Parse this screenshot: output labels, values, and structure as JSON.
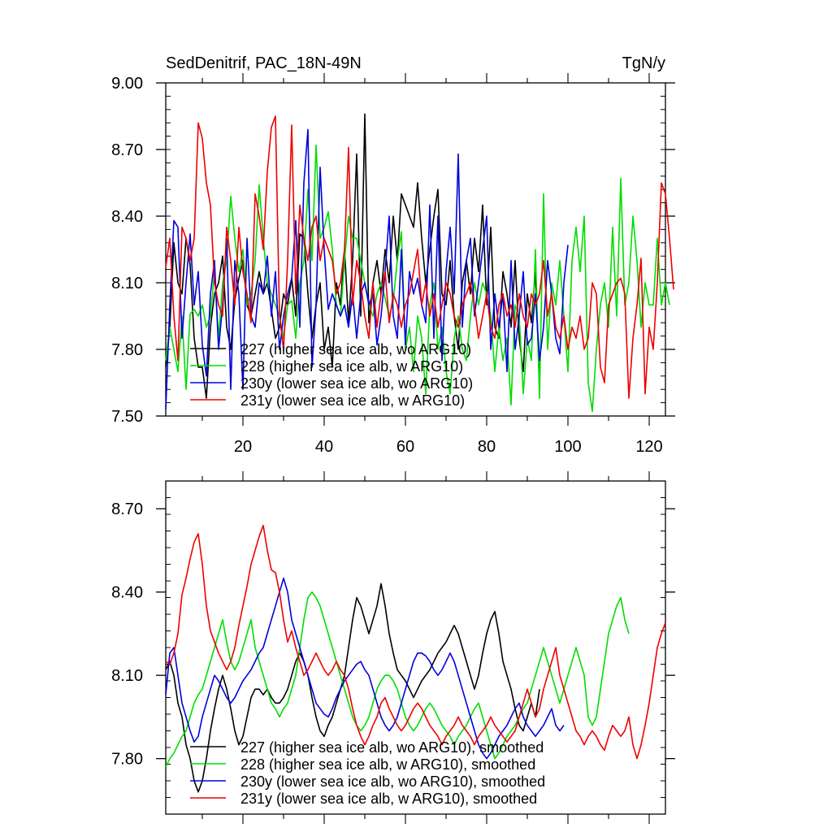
{
  "chart_data": [
    {
      "type": "line",
      "title_left": "SedDenitrif, PAC_18N-49N",
      "title_right": "TgN/y",
      "xlim": [
        1,
        124
      ],
      "ylim": [
        7.5,
        9.0
      ],
      "xticks": [
        20,
        40,
        60,
        80,
        100,
        120
      ],
      "yticks": [
        7.5,
        7.8,
        8.1,
        8.4,
        8.7,
        9.0
      ],
      "ytick_labels": [
        "7.50",
        "7.80",
        "8.10",
        "8.40",
        "8.70",
        "9.00"
      ],
      "legend_position": "bottom-left",
      "series": [
        {
          "name": "227 (higher sea ice alb, wo ARG10)",
          "color": "#000000",
          "start": 1,
          "values": [
            7.72,
            7.9,
            8.28,
            8.1,
            8.05,
            8.3,
            8.18,
            7.85,
            7.72,
            7.72,
            7.58,
            7.9,
            8.05,
            8.1,
            8.22,
            7.9,
            7.8,
            8.02,
            8.12,
            8.2,
            8.0,
            7.95,
            8.05,
            8.15,
            8.05,
            8.1,
            7.98,
            7.85,
            7.9,
            8.05,
            8.0,
            8.12,
            7.95,
            8.32,
            8.3,
            8.05,
            7.85,
            8.0,
            8.1,
            7.8,
            7.9,
            7.72,
            8.1,
            8.0,
            8.25,
            7.92,
            8.2,
            8.68,
            7.95,
            8.86,
            7.92,
            8.1,
            8.2,
            8.05,
            8.25,
            8.1,
            8.4,
            8.2,
            8.5,
            8.45,
            8.4,
            8.35,
            8.55,
            8.3,
            8.1,
            8.25,
            8.4,
            8.52,
            8.05,
            8.0,
            8.2,
            7.95,
            7.8,
            8.1,
            8.2,
            8.05,
            8.3,
            8.15,
            8.45,
            8.0,
            8.35,
            7.9,
            7.85,
            8.15,
            8.05,
            7.9,
            8.2,
            7.85,
            7.7,
            8.05,
            7.92,
            8.15,
            7.64
          ]
        },
        {
          "name": "228 (higher sea ice alb, w ARG10)",
          "color": "#00dd00",
          "start": 1,
          "values": [
            7.75,
            7.9,
            7.8,
            7.7,
            7.95,
            7.62,
            7.96,
            7.98,
            7.95,
            8.0,
            7.9,
            7.95,
            8.15,
            7.85,
            8.1,
            8.2,
            8.49,
            8.3,
            8.15,
            8.25,
            8.0,
            8.05,
            8.2,
            8.54,
            8.3,
            8.1,
            8.05,
            8.0,
            7.95,
            7.85,
            8.0,
            8.02,
            7.85,
            8.1,
            8.2,
            8.52,
            8.2,
            8.72,
            8.3,
            8.35,
            8.42,
            8.25,
            8.0,
            7.95,
            8.2,
            8.4,
            8.3,
            8.3,
            8.2,
            8.1,
            8.0,
            7.95,
            8.05,
            8.1,
            8.03,
            7.95,
            8.02,
            8.2,
            8.33,
            7.8,
            7.9,
            7.7,
            7.95,
            7.85,
            7.6,
            8.0,
            8.1,
            7.8,
            7.9,
            7.7,
            7.6,
            7.85,
            7.95,
            7.8,
            7.75,
            7.95,
            8.1,
            8.0,
            8.1,
            8.05,
            7.95,
            7.7,
            7.9,
            7.75,
            7.85,
            7.55,
            8.0,
            7.95,
            7.6,
            7.85,
            7.75,
            8.25,
            7.58,
            8.5,
            7.8,
            8.1,
            8.0,
            8.2,
            7.95,
            7.7,
            8.2,
            8.35,
            8.15,
            8.4,
            7.65,
            7.52,
            7.8,
            8.0,
            8.1,
            7.9,
            8.35,
            7.95,
            8.57,
            8.0,
            8.1,
            8.4,
            8.2,
            7.9,
            8.1,
            8.0,
            8.0,
            8.3,
            8.0,
            8.1,
            8.0
          ]
        },
        {
          "name": "230y (lower sea ice alb, wo ARG10)",
          "color": "#0000dd",
          "start": 1,
          "values": [
            7.53,
            8.0,
            8.38,
            8.35,
            7.85,
            8.1,
            8.32,
            8.0,
            8.15,
            7.82,
            7.68,
            8.05,
            8.2,
            7.8,
            8.0,
            8.3,
            7.62,
            8.2,
            8.05,
            7.62,
            8.3,
            7.95,
            7.9,
            8.1,
            8.05,
            8.22,
            7.95,
            8.15,
            7.8,
            7.95,
            8.05,
            8.12,
            8.38,
            7.9,
            8.55,
            8.79,
            7.72,
            8.0,
            8.62,
            8.25,
            7.98,
            8.05,
            8.0,
            7.95,
            8.0,
            7.9,
            8.05,
            7.85,
            8.05,
            8.1,
            8.0,
            8.05,
            7.82,
            7.95,
            8.15,
            8.4,
            7.95,
            7.85,
            8.25,
            7.82,
            8.15,
            8.05,
            8.12,
            8.0,
            7.92,
            8.45,
            7.85,
            8.4,
            7.75,
            8.15,
            8.35,
            8.05,
            8.68,
            7.9,
            8.2,
            8.3,
            7.95,
            8.1,
            8.25,
            8.4,
            7.8,
            8.05,
            7.9,
            8.05,
            7.7,
            8.2,
            7.8,
            7.95,
            8.15,
            7.82,
            7.85,
            8.05,
            7.75,
            7.9,
            8.2,
            8.05,
            7.85,
            7.78,
            8.1,
            8.27
          ]
        },
        {
          "name": "231y (lower sea ice alb, w ARG10)",
          "color": "#ee0000",
          "start": 1,
          "values": [
            8.17,
            8.3,
            7.95,
            7.75,
            8.35,
            8.3,
            8.2,
            8.3,
            8.82,
            8.75,
            8.55,
            8.45,
            8.1,
            8.0,
            7.95,
            8.35,
            8.2,
            8.0,
            8.35,
            8.15,
            8.05,
            7.92,
            8.5,
            8.4,
            8.25,
            8.6,
            8.8,
            8.85,
            7.95,
            7.8,
            8.2,
            8.81,
            8.05,
            8.45,
            8.3,
            8.2,
            8.35,
            8.4,
            8.2,
            8.3,
            8.25,
            8.2,
            8.05,
            8.1,
            8.25,
            8.71,
            8.0,
            8.2,
            8.1,
            7.95,
            7.85,
            8.1,
            7.9,
            8.05,
            8.15,
            7.92,
            8.05,
            8.0,
            7.9,
            8.0,
            8.05,
            8.15,
            8.25,
            8.0,
            8.1,
            7.95,
            8.05,
            7.9,
            8.0,
            8.1,
            8.05,
            7.95,
            7.9,
            8.0,
            8.05,
            8.1,
            8.0,
            7.85,
            7.95,
            8.05,
            7.9,
            7.85,
            8.0,
            8.05,
            7.95,
            8.0,
            7.9,
            8.05,
            7.95,
            7.9,
            8.05,
            8.0,
            8.05,
            8.2,
            7.95,
            8.05,
            7.9,
            7.85,
            7.95,
            7.8,
            7.9,
            7.85,
            7.95,
            7.8,
            7.85,
            8.1,
            8.05,
            7.72,
            7.65,
            8.0,
            8.05,
            8.1,
            8.12,
            8.05,
            7.58,
            7.85,
            8.0,
            8.21,
            7.6,
            7.9,
            7.8,
            8.1,
            8.55,
            8.5,
            8.3,
            8.07
          ]
        }
      ],
      "legend": [
        "227 (higher sea ice alb, wo ARG10)",
        "228 (higher sea ice alb, w ARG10)",
        "230y (lower sea ice alb, wo ARG10)",
        "231y (lower sea ice alb, w ARG10)"
      ]
    },
    {
      "type": "line",
      "xlim": [
        1,
        124
      ],
      "ylim": [
        7.6,
        8.8
      ],
      "xticks": [
        20,
        40,
        60,
        80,
        100,
        120
      ],
      "yticks": [
        7.8,
        8.1,
        8.4,
        8.7
      ],
      "ytick_labels": [
        "7.80",
        "8.10",
        "8.40",
        "8.70"
      ],
      "legend_position": "bottom-left",
      "series": [
        {
          "name": "227 (higher sea ice alb, wo ARG10), smoothed",
          "color": "#000000",
          "start": 1,
          "values": [
            8.12,
            8.15,
            8.1,
            8.0,
            7.95,
            7.85,
            7.8,
            7.72,
            7.68,
            7.72,
            7.8,
            7.9,
            7.98,
            8.05,
            8.1,
            8.05,
            7.98,
            7.9,
            7.85,
            7.88,
            7.95,
            8.02,
            8.05,
            8.05,
            8.03,
            8.05,
            8.02,
            8.0,
            8.0,
            8.02,
            8.05,
            8.1,
            8.15,
            8.18,
            8.15,
            8.1,
            8.02,
            7.95,
            7.9,
            7.88,
            7.92,
            7.95,
            8.0,
            8.05,
            8.1,
            8.2,
            8.3,
            8.38,
            8.35,
            8.3,
            8.25,
            8.3,
            8.35,
            8.43,
            8.35,
            8.25,
            8.18,
            8.12,
            8.1,
            8.08,
            8.05,
            8.02,
            8.05,
            8.08,
            8.1,
            8.12,
            8.15,
            8.18,
            8.2,
            8.22,
            8.25,
            8.28,
            8.25,
            8.2,
            8.15,
            8.1,
            8.05,
            8.1,
            8.18,
            8.25,
            8.3,
            8.33,
            8.25,
            8.15,
            8.1,
            8.05,
            7.98,
            7.92,
            7.9,
            7.95,
            8.0,
            7.95,
            8.05
          ]
        },
        {
          "name": "228 (higher sea ice alb, w ARG10), smoothed",
          "color": "#00dd00",
          "start": 1,
          "values": [
            7.77,
            7.8,
            7.82,
            7.85,
            7.88,
            7.9,
            7.95,
            8.0,
            8.03,
            8.05,
            8.1,
            8.15,
            8.2,
            8.25,
            8.3,
            8.22,
            8.15,
            8.12,
            8.15,
            8.2,
            8.25,
            8.3,
            8.2,
            8.15,
            8.1,
            8.05,
            8.0,
            7.98,
            7.95,
            7.98,
            8.0,
            8.05,
            8.1,
            8.2,
            8.3,
            8.38,
            8.4,
            8.38,
            8.35,
            8.3,
            8.25,
            8.2,
            8.15,
            8.1,
            8.05,
            8.0,
            7.95,
            7.92,
            7.9,
            7.92,
            7.95,
            8.0,
            8.05,
            8.08,
            8.1,
            8.1,
            8.08,
            8.05,
            8.0,
            7.95,
            7.92,
            7.9,
            7.92,
            7.95,
            7.98,
            8.0,
            7.98,
            7.95,
            7.92,
            7.9,
            7.88,
            7.85,
            7.88,
            7.9,
            7.92,
            7.95,
            7.98,
            8.0,
            7.95,
            7.9,
            7.85,
            7.8,
            7.82,
            7.85,
            7.88,
            7.9,
            7.92,
            7.95,
            7.98,
            8.0,
            8.05,
            8.1,
            8.15,
            8.2,
            8.15,
            8.1,
            8.05,
            8.0,
            8.05,
            8.1,
            8.15,
            8.2,
            8.15,
            8.1,
            7.95,
            7.92,
            7.95,
            8.05,
            8.15,
            8.25,
            8.3,
            8.35,
            8.38,
            8.3,
            8.25
          ]
        },
        {
          "name": "230y (lower sea ice alb, wo ARG10), smoothed",
          "color": "#0000dd",
          "start": 1,
          "values": [
            8.03,
            8.18,
            8.2,
            8.1,
            8.0,
            7.95,
            7.9,
            7.86,
            7.88,
            7.95,
            8.0,
            8.05,
            8.1,
            8.08,
            8.05,
            8.02,
            8.0,
            8.02,
            8.05,
            8.08,
            8.1,
            8.12,
            8.15,
            8.18,
            8.2,
            8.25,
            8.3,
            8.35,
            8.4,
            8.45,
            8.4,
            8.3,
            8.25,
            8.2,
            8.15,
            8.1,
            8.05,
            8.0,
            7.98,
            7.96,
            7.95,
            7.98,
            8.02,
            8.05,
            8.08,
            8.1,
            8.12,
            8.14,
            8.15,
            8.12,
            8.1,
            8.05,
            8.0,
            7.95,
            7.92,
            7.9,
            7.92,
            7.95,
            8.0,
            8.05,
            8.1,
            8.15,
            8.18,
            8.18,
            8.17,
            8.15,
            8.12,
            8.1,
            8.12,
            8.15,
            8.18,
            8.15,
            8.1,
            8.05,
            8.0,
            7.95,
            7.9,
            7.85,
            7.82,
            7.8,
            7.82,
            7.85,
            7.88,
            7.9,
            7.92,
            7.95,
            7.98,
            8.0,
            7.95,
            7.92,
            7.9,
            7.88,
            7.9,
            7.92,
            7.95,
            7.98,
            7.92,
            7.9,
            7.92
          ]
        },
        {
          "name": "231y (lower sea ice alb, w ARG10), smoothed",
          "color": "#ee0000",
          "start": 1,
          "values": [
            8.15,
            8.14,
            8.18,
            8.25,
            8.39,
            8.45,
            8.52,
            8.58,
            8.61,
            8.5,
            8.35,
            8.26,
            8.22,
            8.18,
            8.15,
            8.12,
            8.15,
            8.2,
            8.28,
            8.35,
            8.42,
            8.5,
            8.55,
            8.6,
            8.64,
            8.55,
            8.48,
            8.47,
            8.4,
            8.3,
            8.22,
            8.26,
            8.2,
            8.15,
            8.1,
            8.12,
            8.15,
            8.18,
            8.15,
            8.12,
            8.1,
            8.12,
            8.15,
            8.12,
            8.1,
            8.05,
            7.98,
            7.92,
            7.88,
            7.85,
            7.88,
            7.92,
            7.95,
            8.0,
            8.02,
            7.98,
            7.95,
            7.92,
            7.9,
            7.92,
            7.95,
            7.98,
            8.0,
            7.98,
            7.95,
            7.92,
            7.9,
            7.88,
            7.85,
            7.88,
            7.9,
            7.92,
            7.95,
            7.92,
            7.9,
            7.88,
            7.85,
            7.88,
            7.9,
            7.92,
            7.95,
            7.92,
            7.9,
            7.88,
            7.86,
            7.88,
            7.9,
            7.95,
            8.0,
            8.05,
            8.0,
            7.95,
            7.98,
            8.05,
            8.1,
            8.15,
            8.2,
            8.1,
            8.05,
            8.0,
            7.95,
            7.9,
            7.88,
            7.85,
            7.88,
            7.9,
            7.88,
            7.85,
            7.83,
            7.88,
            7.92,
            7.9,
            7.88,
            7.9,
            7.95,
            7.85,
            7.8,
            7.85,
            7.92,
            8.0,
            8.1,
            8.2,
            8.25,
            8.29
          ]
        }
      ],
      "legend": [
        "227 (higher sea ice alb, wo ARG10), smoothed",
        "228 (higher sea ice alb, w ARG10), smoothed",
        "230y (lower sea ice alb, wo ARG10), smoothed",
        "231y (lower sea ice alb, w ARG10), smoothed"
      ]
    }
  ]
}
